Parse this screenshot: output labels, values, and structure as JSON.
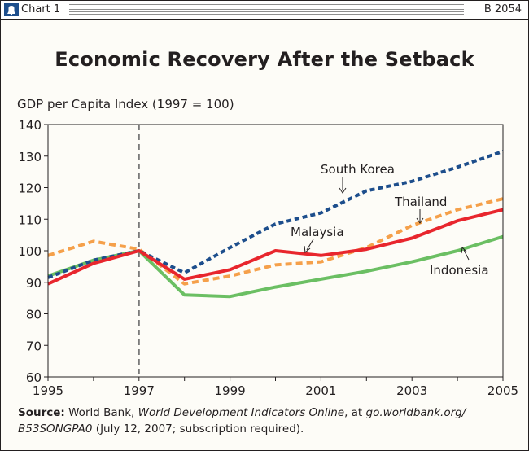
{
  "header": {
    "chart_label": "Chart 1",
    "report_id": "B 2054"
  },
  "chart_data": {
    "type": "line",
    "title": "Economic Recovery After the Setback",
    "ylabel": "GDP per Capita Index (1997 = 100)",
    "xlabel": "",
    "ylim": [
      60,
      140
    ],
    "xlim": [
      1995,
      2005
    ],
    "yticks": [
      60,
      70,
      80,
      90,
      100,
      110,
      120,
      130,
      140
    ],
    "xticks": [
      1995,
      1997,
      1999,
      2001,
      2003,
      2005
    ],
    "reference_line": {
      "x": 1997,
      "style": "dashed"
    },
    "x": [
      1995,
      1996,
      1997,
      1998,
      1999,
      2000,
      2001,
      2002,
      2003,
      2004,
      2005
    ],
    "series": [
      {
        "name": "South Korea",
        "color": "#1d4e8c",
        "dash": "dotted",
        "values": [
          91.5,
          97,
          100,
          93,
          101,
          108.5,
          112,
          119,
          122,
          126.5,
          131.5
        ]
      },
      {
        "name": "Thailand",
        "color": "#f5a04a",
        "dash": "dashed",
        "values": [
          98.5,
          103,
          100.5,
          89.5,
          92,
          95.5,
          96.5,
          101,
          108,
          113,
          116.5
        ]
      },
      {
        "name": "Malaysia",
        "color": "#e8262d",
        "dash": "solid",
        "values": [
          89.5,
          96,
          100,
          91,
          94,
          100,
          98.5,
          100.5,
          104,
          109.5,
          113
        ]
      },
      {
        "name": "Indonesia",
        "color": "#6bbf63",
        "dash": "solid",
        "values": [
          92,
          97,
          100,
          86,
          85.5,
          88.5,
          91,
          93.5,
          96.5,
          100,
          104.5
        ]
      }
    ]
  },
  "source": {
    "label": "Source:",
    "text1": "World Bank,",
    "italic1": "World Development Indicators Online",
    "text2": ", at",
    "italic2": "go.worldbank.org/",
    "italic3": "B53SONGPA0",
    "text3": "(July 12, 2007; subscription required)."
  }
}
